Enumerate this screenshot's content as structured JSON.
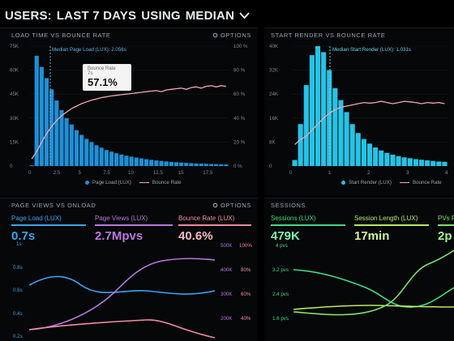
{
  "header": {
    "users": "USERS:",
    "last": "LAST 7 DAYS",
    "using": "USING",
    "median": "MEDIAN"
  },
  "options_label": "OPTIONS",
  "panel1": {
    "title": "LOAD TIME VS BOUNCE RATE",
    "marker_label": "Median Page Load (LUX): 2.056s",
    "tooltip_label": "Bounce Rate",
    "tooltip_sub": "7s",
    "tooltip_value": "57.1%",
    "legend": [
      "Page Load (LUX)",
      "Bounce Rate"
    ],
    "colors": {
      "bars": "#1f8fd6",
      "line": "#f0a6b6"
    }
  },
  "panel2": {
    "title": "START RENDER VS BOUNCE RATE",
    "marker_label": "Median Start Render (LUX): 1.031s",
    "legend": [
      "Start Render (LUX)",
      "Bounce Rate"
    ],
    "colors": {
      "bars": "#25c3e6",
      "line": "#f0a6b6"
    }
  },
  "panel3": {
    "title": "PAGE VIEWS VS ONLOAD",
    "metrics": [
      {
        "label": "Page Load (LUX)",
        "value": "0.7s",
        "color": "#3aa6ef"
      },
      {
        "label": "Page Views (LUX)",
        "value": "2.7Mpvs",
        "color": "#b979dc"
      },
      {
        "label": "Bounce Rate (LUX)",
        "value": "40.6%",
        "color": "#f08aa3"
      }
    ],
    "left_axis": [
      "1s",
      "0.8s",
      "0.6s",
      "0.4s",
      "0.2s"
    ],
    "right_axis1": [
      "500K",
      "400K",
      "300K",
      "200K"
    ],
    "right_axis2": [
      "100%",
      "80%",
      "60%",
      "40%"
    ]
  },
  "panel4": {
    "title": "SESSIONS",
    "metrics": [
      {
        "label": "Sessions (LUX)",
        "value": "479K",
        "color": "#43d98a"
      },
      {
        "label": "Session Length (LUX)",
        "value": "17min",
        "color": "#b7ea62"
      },
      {
        "label": "PVs P",
        "value": "2p",
        "color": "#7ee070"
      }
    ],
    "left_axis": [
      "4 pvs",
      "3.2 pvs",
      "2.4 pvs",
      "1.6 pvs"
    ]
  },
  "chart_data": [
    {
      "type": "bar",
      "title": "LOAD TIME VS BOUNCE RATE",
      "x_ticks": [
        "0",
        "2.5",
        "5",
        "7.5",
        "10",
        "12.5",
        "15",
        "17.5"
      ],
      "y_ticks_left": [
        "75K",
        "60K",
        "45K",
        "30K",
        "15K",
        "0"
      ],
      "y_ticks_right": [
        "100 %",
        "80 %",
        "60 %",
        "40 %",
        "20 %",
        "0 %"
      ],
      "ylim": [
        0,
        75000
      ],
      "series": [
        {
          "name": "Page Load (LUX)",
          "values": [
            500,
            69000,
            62000,
            55000,
            48000,
            41000,
            35000,
            30000,
            26000,
            22500,
            19500,
            17000,
            15000,
            13000,
            11500,
            10000,
            9000,
            8000,
            7200,
            6500,
            5900,
            5300,
            4800,
            4300,
            3900,
            3500,
            3200,
            2900,
            2600,
            2400,
            2200,
            2000,
            1800,
            1600,
            1500,
            1400,
            1300,
            1200,
            1100,
            1000
          ]
        },
        {
          "name": "Bounce Rate",
          "values": [
            6,
            12,
            20,
            27,
            33,
            38,
            42,
            45,
            48,
            50,
            52,
            53.5,
            55,
            56,
            57.1,
            57.8,
            58.5,
            59,
            59.5,
            60,
            60.5,
            61,
            61.5,
            62,
            62.5,
            63,
            62,
            63.5,
            64,
            64.5,
            65,
            64,
            65.5,
            66,
            65,
            66.5,
            67,
            66,
            67,
            66.5
          ]
        }
      ]
    },
    {
      "type": "bar",
      "title": "START RENDER VS BOUNCE RATE",
      "x_ticks": [
        "0",
        "1",
        "2",
        "3",
        "4"
      ],
      "y_ticks_left": [
        "40K",
        "32K",
        "24K",
        "16K",
        "8K",
        "0"
      ],
      "ylim": [
        0,
        40000
      ],
      "series": [
        {
          "name": "Start Render (LUX)",
          "values": [
            2000,
            14000,
            27000,
            37000,
            40000,
            38000,
            32000,
            26000,
            22000,
            18000,
            14000,
            11000,
            9000,
            7500,
            6200,
            5200,
            4400,
            3800,
            3300,
            2900,
            2600,
            2300,
            2100,
            1900,
            1700,
            1500,
            1400
          ]
        },
        {
          "name": "Bounce Rate",
          "values": [
            18,
            22,
            25,
            30,
            35,
            40,
            44,
            47,
            49,
            50,
            51,
            52,
            53,
            52.5,
            53,
            54,
            53,
            52,
            53,
            54,
            53.5,
            53,
            52,
            53,
            52.5,
            53,
            52
          ]
        }
      ]
    }
  ]
}
